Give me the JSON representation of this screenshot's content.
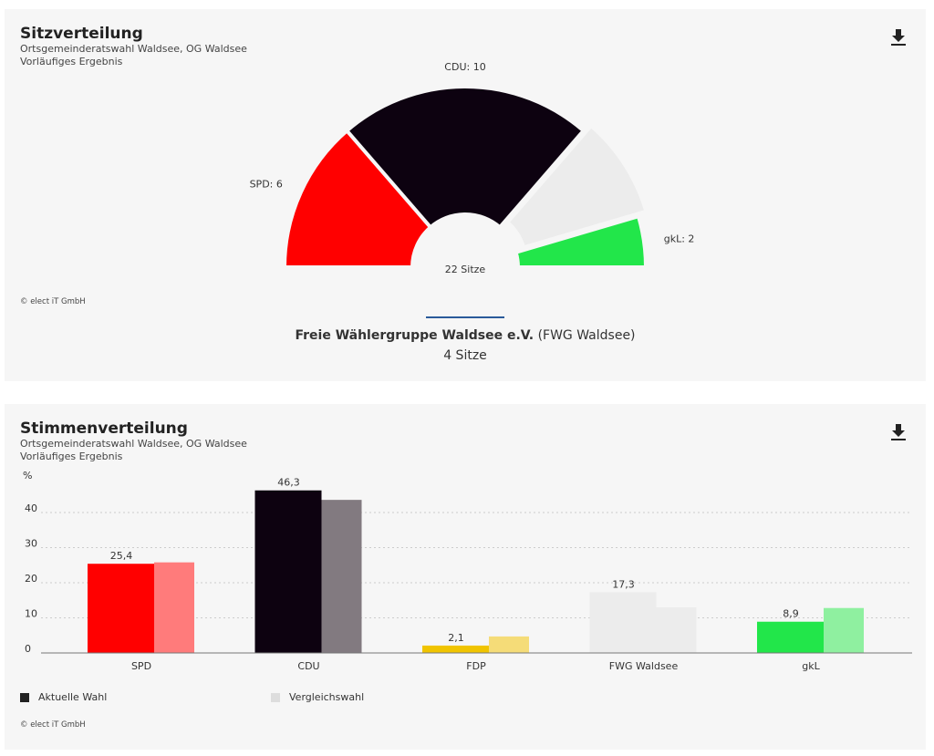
{
  "seats": {
    "title": "Sitzverteilung",
    "subtitle": "Ortsgemeinderatswahl Waldsee, OG Waldsee",
    "status": "Vorläufiges Ergebnis",
    "total_label": "22 Sitze",
    "copyright": "© elect iT GmbH",
    "selected": {
      "name": "Freie Wählergruppe Waldsee e.V.",
      "short": "(FWG Waldsee)",
      "seats": "4 Sitze"
    },
    "download_icon": "download-icon"
  },
  "votes": {
    "title": "Stimmenverteilung",
    "subtitle": "Ortsgemeinderatswahl Waldsee, OG Waldsee",
    "status": "Vorläufiges Ergebnis",
    "copyright": "© elect iT GmbH",
    "legend": {
      "current": "Aktuelle Wahl",
      "compare": "Vergleichswahl"
    },
    "download_icon": "download-icon"
  },
  "chart_data": [
    {
      "type": "pie",
      "subtype": "semicircle parliament",
      "title": "Sitzverteilung",
      "categories": [
        "SPD",
        "CDU",
        "FWG Waldsee",
        "gkL"
      ],
      "values": [
        6,
        10,
        4,
        2
      ],
      "labels": [
        "SPD: 6",
        "CDU: 10",
        "",
        "gkL: 2"
      ],
      "colors": [
        "#ff0000",
        "#0d0210",
        "#ececec",
        "#22e64a"
      ],
      "highlighted": "FWG Waldsee",
      "total": 22
    },
    {
      "type": "bar",
      "title": "Stimmenverteilung",
      "ylabel": "%",
      "ylim": [
        0,
        50
      ],
      "yticks": [
        0,
        10,
        20,
        30,
        40
      ],
      "grid": true,
      "legend": "bottom-left",
      "categories": [
        "SPD",
        "CDU",
        "FDP",
        "FWG Waldsee",
        "gkL"
      ],
      "series": [
        {
          "name": "Aktuelle Wahl",
          "values": [
            25.4,
            46.3,
            2.1,
            17.3,
            8.9
          ],
          "labels": [
            "25,4",
            "46,3",
            "2,1",
            "17,3",
            "8,9"
          ]
        },
        {
          "name": "Vergleichswahl",
          "values": [
            25.8,
            43.6,
            4.7,
            13.0,
            12.8
          ]
        }
      ],
      "colors": [
        "#ff0000",
        "#0d0210",
        "#f0c400",
        "#ececec",
        "#22e64a"
      ],
      "compare_colors": [
        "#ff7b7b",
        "#827a80",
        "#f5dc78",
        "#ececec",
        "#8ff0a0"
      ]
    }
  ]
}
